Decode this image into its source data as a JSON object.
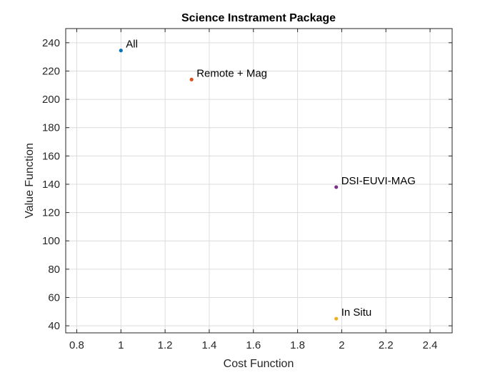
{
  "chart_data": {
    "type": "scatter",
    "title": "Science Instrament Package",
    "xlabel": "Cost Function",
    "ylabel": "Value Function",
    "xlim": [
      0.75,
      2.5
    ],
    "ylim": [
      35,
      250
    ],
    "xticks": [
      0.8,
      1,
      1.2,
      1.4,
      1.6,
      1.8,
      2,
      2.2,
      2.4
    ],
    "xtick_labels": [
      "0.8",
      "1",
      "1.2",
      "1.4",
      "1.6",
      "1.8",
      "2",
      "2.2",
      "2.4"
    ],
    "yticks": [
      40,
      60,
      80,
      100,
      120,
      140,
      160,
      180,
      200,
      220,
      240
    ],
    "ytick_labels": [
      "40",
      "60",
      "80",
      "100",
      "120",
      "140",
      "160",
      "180",
      "200",
      "220",
      "240"
    ],
    "grid": true,
    "points": [
      {
        "label": "All",
        "x": 1.0,
        "y": 234.5,
        "color": "#0072BD"
      },
      {
        "label": "Remote + Mag",
        "x": 1.32,
        "y": 214,
        "color": "#D95319"
      },
      {
        "label": "DSI-EUVI-MAG",
        "x": 1.975,
        "y": 138,
        "color": "#7E2F8E"
      },
      {
        "label": "In Situ",
        "x": 1.975,
        "y": 45,
        "color": "#EDB120"
      }
    ]
  }
}
